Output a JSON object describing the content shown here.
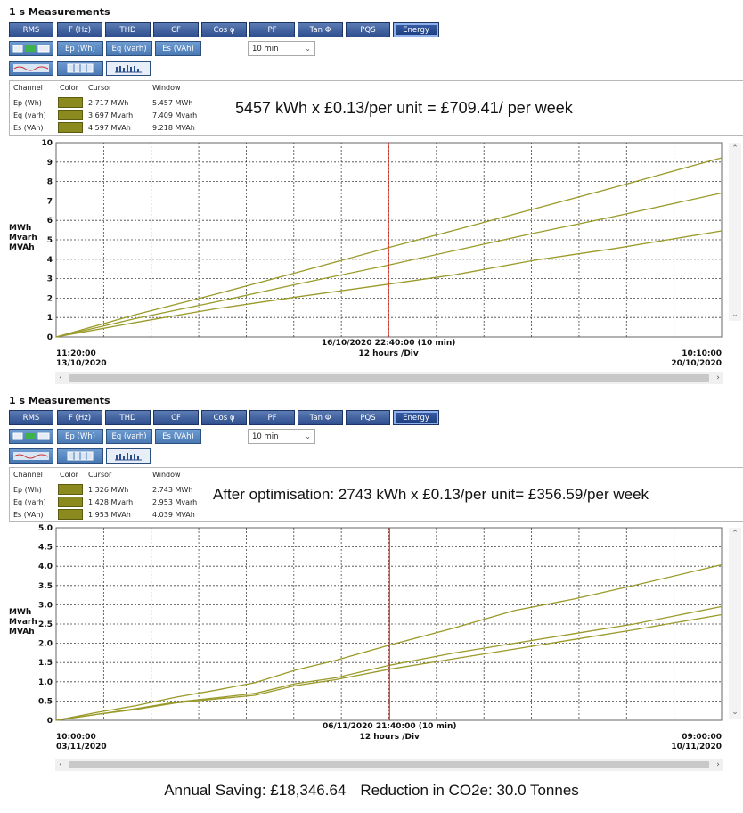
{
  "colors": {
    "series": "#9a9a2a",
    "cursor": "#e03020",
    "toolbar": "#2e4f8f"
  },
  "panels": [
    {
      "title": "1 s Measurements",
      "toolbar": [
        "RMS",
        "F (Hz)",
        "THD",
        "CF",
        "Cos φ",
        "PF",
        "Tan Φ",
        "PQS",
        "Energy"
      ],
      "active_tab": "Energy",
      "sub_buttons": [
        "Ep (Wh)",
        "Eq (varh)",
        "Es (VAh)"
      ],
      "interval_select": "10 min",
      "legend": {
        "headers": {
          "channel": "Channel",
          "color": "Color",
          "cursor": "Cursor",
          "window": "Window"
        },
        "rows": [
          {
            "channel": "Ep (Wh)",
            "cursor": "2.717 MWh",
            "window": "5.457 MWh"
          },
          {
            "channel": "Eq (varh)",
            "cursor": "3.697 Mvarh",
            "window": "7.409 Mvarh"
          },
          {
            "channel": "Es (VAh)",
            "cursor": "4.597 MVAh",
            "window": "9.218 MVAh"
          }
        ]
      },
      "annotation": "5457 kWh x £0.13/per unit = £709.41/ per week",
      "chart": {
        "ylabel": [
          "MWh",
          "Mvarh",
          "MVAh"
        ],
        "cursor_label": "16/10/2020 22:40:00 (10 min)",
        "div_label": "12 hours /Div",
        "start_time": "11:20:00",
        "start_date": "13/10/2020",
        "end_time": "10:10:00",
        "end_date": "20/10/2020"
      }
    },
    {
      "title": "1 s Measurements",
      "toolbar": [
        "RMS",
        "F (Hz)",
        "THD",
        "CF",
        "Cos φ",
        "PF",
        "Tan Φ",
        "PQS",
        "Energy"
      ],
      "active_tab": "Energy",
      "sub_buttons": [
        "Ep (Wh)",
        "Eq (varh)",
        "Es (VAh)"
      ],
      "interval_select": "10 min",
      "legend": {
        "headers": {
          "channel": "Channel",
          "color": "Color",
          "cursor": "Cursor",
          "window": "Window"
        },
        "rows": [
          {
            "channel": "Ep (Wh)",
            "cursor": "1.326 MWh",
            "window": "2.743 MWh"
          },
          {
            "channel": "Eq (varh)",
            "cursor": "1.428 Mvarh",
            "window": "2.953 Mvarh"
          },
          {
            "channel": "Es (VAh)",
            "cursor": "1.953 MVAh",
            "window": "4.039 MVAh"
          }
        ]
      },
      "annotation": "After optimisation: 2743 kWh x £0.13/per unit= £356.59/per week",
      "chart": {
        "ylabel": [
          "MWh",
          "Mvarh",
          "MVAh"
        ],
        "cursor_label": "06/11/2020 21:40:00 (10 min)",
        "div_label": "12 hours /Div",
        "start_time": "10:00:00",
        "start_date": "03/11/2020",
        "end_time": "09:00:00",
        "end_date": "10/11/2020"
      }
    }
  ],
  "footer": {
    "saving": "Annual Saving: £18,346.64",
    "co2": "Reduction in CO2e: 30.0 Tonnes"
  },
  "chart_data": [
    {
      "type": "line",
      "ylabel": "MWh Mvarh MVAh",
      "ylim": [
        0,
        10
      ],
      "yticks": [
        "0",
        "1",
        "2",
        "3",
        "4",
        "5",
        "6",
        "7",
        "8",
        "9",
        "10"
      ],
      "x_range_hours": [
        0,
        166.83
      ],
      "cursor_x_hours": 83.33,
      "grid": true,
      "series": [
        {
          "name": "Ep (Wh)",
          "x": [
            0,
            20,
            40,
            60,
            83.33,
            100,
            120,
            140,
            166.83
          ],
          "values": [
            0,
            0.75,
            1.45,
            2.05,
            2.717,
            3.2,
            3.95,
            4.55,
            5.457
          ]
        },
        {
          "name": "Eq (varh)",
          "x": [
            0,
            20,
            40,
            60,
            83.33,
            100,
            120,
            140,
            166.83
          ],
          "values": [
            0,
            0.95,
            1.8,
            2.7,
            3.697,
            4.45,
            5.35,
            6.2,
            7.409
          ]
        },
        {
          "name": "Es (VAh)",
          "x": [
            0,
            20,
            40,
            60,
            83.33,
            100,
            120,
            140,
            166.83
          ],
          "values": [
            0,
            1.15,
            2.2,
            3.3,
            4.597,
            5.5,
            6.6,
            7.7,
            9.218
          ]
        }
      ]
    },
    {
      "type": "line",
      "ylabel": "MWh Mvarh MVAh",
      "ylim": [
        0,
        5
      ],
      "yticks": [
        "0",
        "0.5",
        "1.0",
        "1.5",
        "2.0",
        "2.5",
        "3.0",
        "3.5",
        "4.0",
        "4.5",
        "5.0"
      ],
      "x_range_hours": [
        0,
        167
      ],
      "cursor_x_hours": 83.67,
      "grid": true,
      "series": [
        {
          "name": "Ep (Wh)",
          "x": [
            0,
            10,
            20,
            30,
            40,
            50,
            60,
            70,
            83.67,
            100,
            115,
            130,
            145,
            167
          ],
          "values": [
            0,
            0.15,
            0.28,
            0.45,
            0.55,
            0.65,
            0.9,
            1.05,
            1.326,
            1.6,
            1.85,
            2.1,
            2.35,
            2.743
          ]
        },
        {
          "name": "Eq (varh)",
          "x": [
            0,
            10,
            20,
            30,
            40,
            50,
            60,
            70,
            83.67,
            100,
            115,
            130,
            145,
            167
          ],
          "values": [
            0,
            0.15,
            0.3,
            0.47,
            0.58,
            0.7,
            0.95,
            1.1,
            1.428,
            1.75,
            2.0,
            2.25,
            2.5,
            2.953
          ]
        },
        {
          "name": "Es (VAh)",
          "x": [
            0,
            10,
            20,
            30,
            40,
            50,
            60,
            70,
            83.67,
            100,
            115,
            130,
            145,
            167
          ],
          "values": [
            0,
            0.2,
            0.38,
            0.6,
            0.78,
            0.98,
            1.3,
            1.55,
            1.953,
            2.4,
            2.85,
            3.15,
            3.5,
            4.039
          ]
        }
      ]
    }
  ]
}
